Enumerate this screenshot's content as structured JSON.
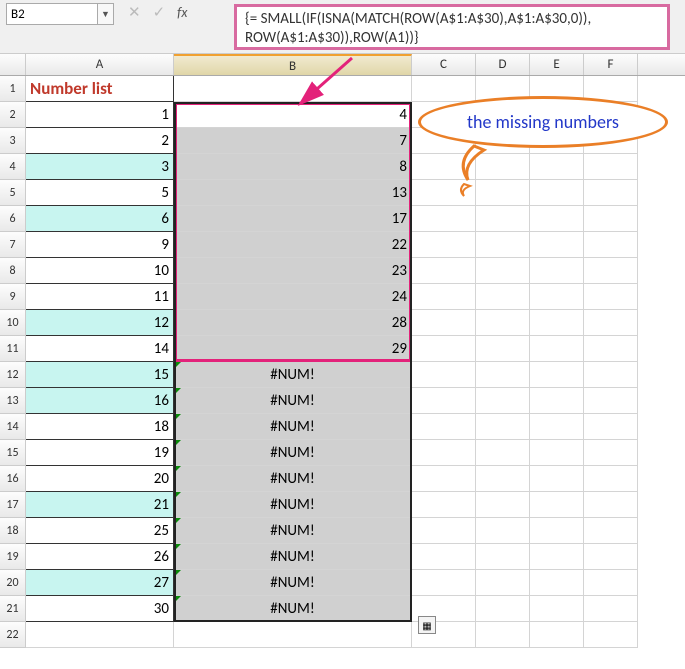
{
  "name_box": "B2",
  "formula_line1": "{= SMALL(IF(ISNA(MATCH(ROW(A$1:A$30),A$1:A$30,0)),",
  "formula_line2": "ROW(A$1:A$30)),ROW(A1))}",
  "cols": {
    "A": "A",
    "B": "B",
    "C": "C",
    "D": "D",
    "E": "E",
    "F": "F"
  },
  "callout_text": "the missing numbers",
  "header_label": "Number list",
  "num_error": "#NUM!",
  "rows": [
    {
      "r": 1,
      "a": "",
      "b": "",
      "hdr": true
    },
    {
      "r": 2,
      "a": "1",
      "b": "4",
      "cyan": false,
      "bsel": false
    },
    {
      "r": 3,
      "a": "2",
      "b": "7",
      "cyan": false,
      "bsel": true
    },
    {
      "r": 4,
      "a": "3",
      "b": "8",
      "cyan": true,
      "bsel": true
    },
    {
      "r": 5,
      "a": "5",
      "b": "13",
      "cyan": false,
      "bsel": true
    },
    {
      "r": 6,
      "a": "6",
      "b": "17",
      "cyan": true,
      "bsel": true
    },
    {
      "r": 7,
      "a": "9",
      "b": "22",
      "cyan": false,
      "bsel": true
    },
    {
      "r": 8,
      "a": "10",
      "b": "23",
      "cyan": false,
      "bsel": true
    },
    {
      "r": 9,
      "a": "11",
      "b": "24",
      "cyan": false,
      "bsel": true
    },
    {
      "r": 10,
      "a": "12",
      "b": "28",
      "cyan": true,
      "bsel": true
    },
    {
      "r": 11,
      "a": "14",
      "b": "29",
      "cyan": false,
      "bsel": true
    },
    {
      "r": 12,
      "a": "15",
      "b": "#NUM!",
      "cyan": true,
      "bsel": true,
      "err": true
    },
    {
      "r": 13,
      "a": "16",
      "b": "#NUM!",
      "cyan": true,
      "bsel": true,
      "err": true
    },
    {
      "r": 14,
      "a": "18",
      "b": "#NUM!",
      "cyan": false,
      "bsel": true,
      "err": true
    },
    {
      "r": 15,
      "a": "19",
      "b": "#NUM!",
      "cyan": false,
      "bsel": true,
      "err": true
    },
    {
      "r": 16,
      "a": "20",
      "b": "#NUM!",
      "cyan": false,
      "bsel": true,
      "err": true
    },
    {
      "r": 17,
      "a": "21",
      "b": "#NUM!",
      "cyan": true,
      "bsel": true,
      "err": true
    },
    {
      "r": 18,
      "a": "25",
      "b": "#NUM!",
      "cyan": false,
      "bsel": true,
      "err": true
    },
    {
      "r": 19,
      "a": "26",
      "b": "#NUM!",
      "cyan": false,
      "bsel": true,
      "err": true
    },
    {
      "r": 20,
      "a": "27",
      "b": "#NUM!",
      "cyan": true,
      "bsel": true,
      "err": true
    },
    {
      "r": 21,
      "a": "30",
      "b": "#NUM!",
      "cyan": false,
      "bsel": true,
      "err": true
    },
    {
      "r": 22,
      "a": "",
      "b": "",
      "plain": true
    }
  ],
  "colors": {
    "pink": "#e3227a",
    "pink_light": "#d86aa0",
    "orange": "#ea7f27",
    "blue_text": "#2237c8",
    "cyan_bg": "#c8f5f0",
    "sel_gray": "#d0d0d0",
    "red_hdr": "#c0392b"
  }
}
